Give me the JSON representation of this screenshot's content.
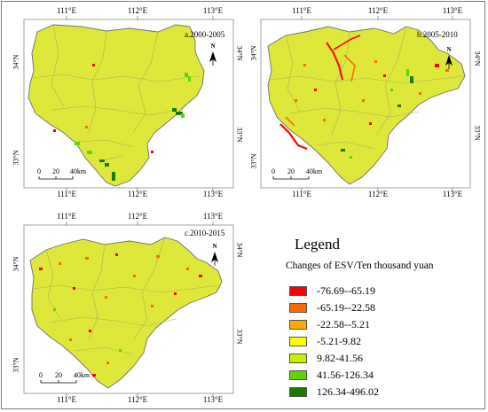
{
  "panels": [
    {
      "id": "a",
      "title": "a.2000-2005",
      "lon_labels": [
        "111°E",
        "112°E",
        "113°E"
      ],
      "lat_labels_left": [
        "34°N",
        "33°N"
      ],
      "lat_labels_right": [
        "34°N",
        "33°N"
      ],
      "scale": {
        "ticks": [
          "0",
          "20",
          "40km"
        ]
      },
      "north": "N"
    },
    {
      "id": "b",
      "title": "b.2005-2010",
      "lon_labels": [
        "111°E",
        "112°E",
        "113°E"
      ],
      "lat_labels_left": [
        "34°N",
        "33°N"
      ],
      "lat_labels_right": [
        "34°N",
        "33°N"
      ],
      "scale": {
        "ticks": [
          "0",
          "20",
          "40km"
        ]
      },
      "north": "N"
    },
    {
      "id": "c",
      "title": "c.2010-2015",
      "lon_labels": [
        "111°E",
        "112°E",
        "113°E"
      ],
      "lat_labels_left": [
        "34°N",
        "33°N"
      ],
      "lat_labels_right": [
        "34°N",
        "33°N"
      ],
      "scale": {
        "ticks": [
          "0",
          "20",
          "40km"
        ]
      },
      "north": "N"
    }
  ],
  "legend": {
    "title": "Legend",
    "subtitle": "Changes of ESV/Ten  thousand yuan",
    "items": [
      {
        "label": "-76.69--65.19",
        "color": "#ff0000"
      },
      {
        "label": "-65.19--22.58",
        "color": "#ff6a00"
      },
      {
        "label": "-22.58--5.21",
        "color": "#ffaa00"
      },
      {
        "label": "-5.21-9.82",
        "color": "#ffff00"
      },
      {
        "label": "9.82-41.56",
        "color": "#c8f000"
      },
      {
        "label": "41.56-126.34",
        "color": "#5fd400"
      },
      {
        "label": "126.34-496.02",
        "color": "#1a7a00"
      }
    ]
  },
  "colors": {
    "region_fill": "#dfe83a",
    "region_outline": "#6e6e6e",
    "county_lines": "#a9b15a"
  }
}
